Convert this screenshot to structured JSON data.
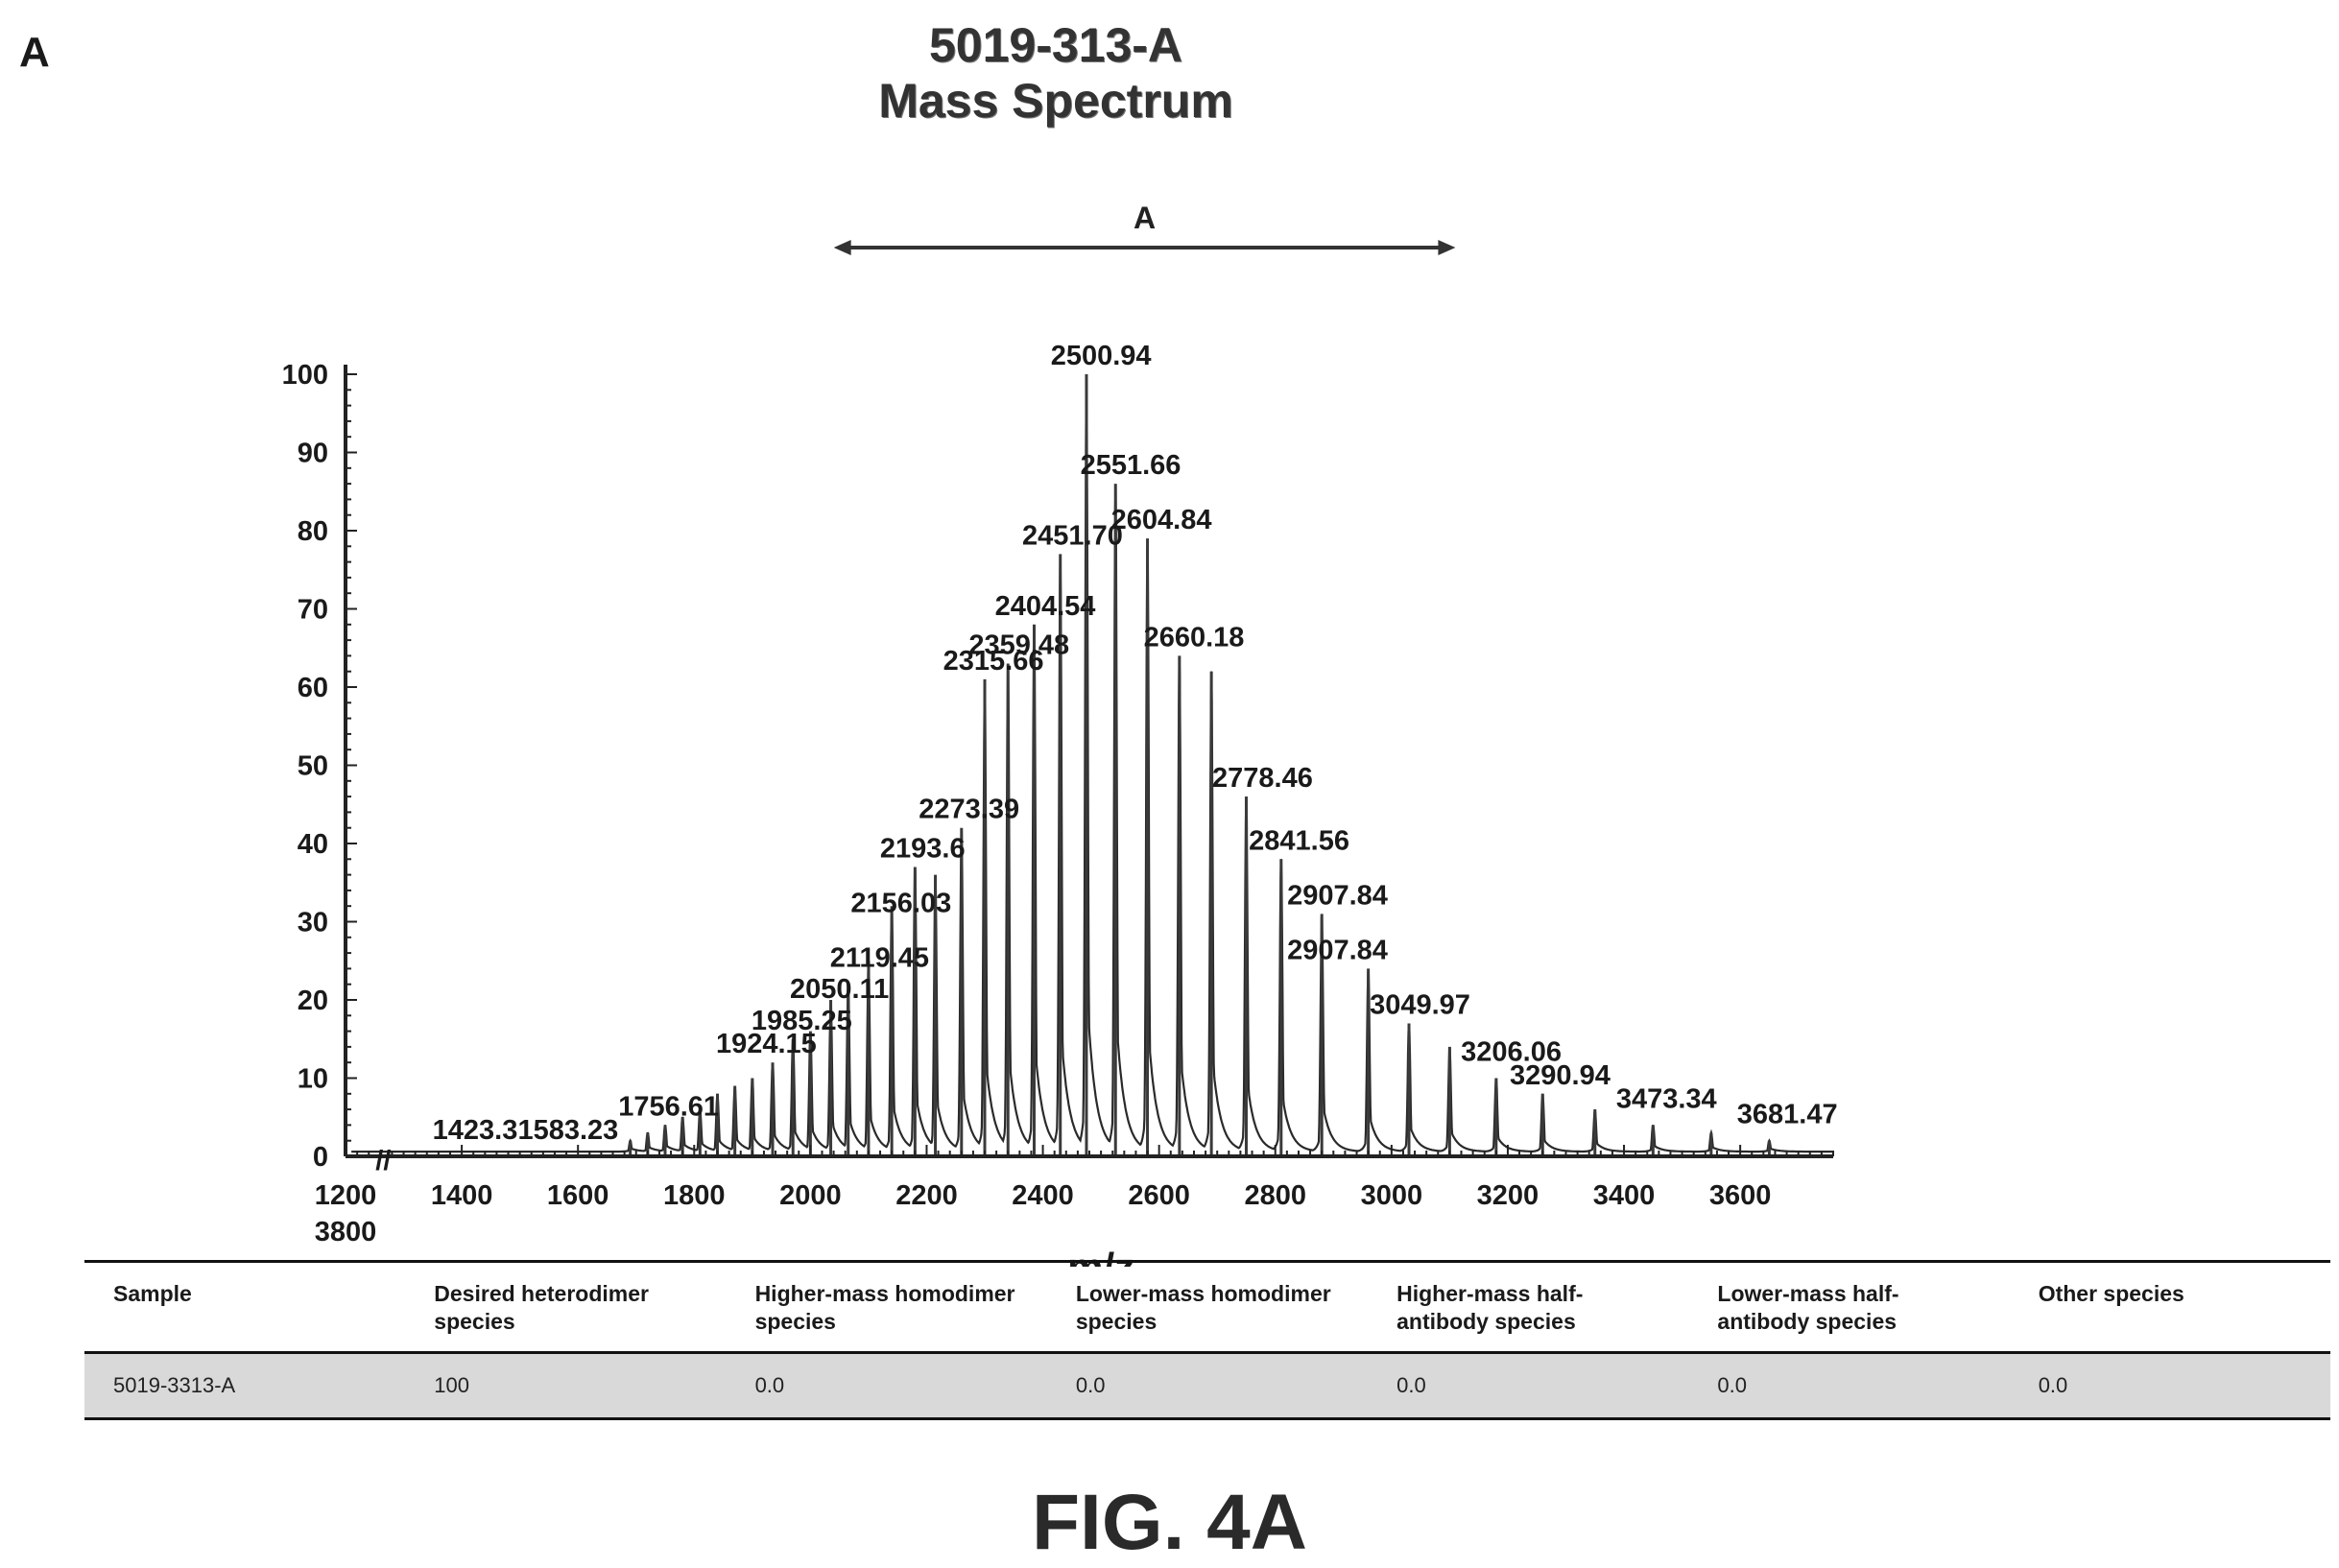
{
  "panel_letter": "A",
  "title_line1": "5019-313-A",
  "title_line2": "Mass Spectrum",
  "range_marker_label": "A",
  "chart_data": {
    "type": "line",
    "title": "5019-313-A Mass Spectrum",
    "xlabel": "m/z",
    "ylabel": "",
    "xlim": [
      1200,
      3760
    ],
    "ylim": [
      0,
      100
    ],
    "x_tick_labels": [
      "1200",
      "1400",
      "1600",
      "1800",
      "2000",
      "2200",
      "2400",
      "2600",
      "2800",
      "3000",
      "3200",
      "3400",
      "3600",
      "3800"
    ],
    "x_tick_values": [
      1200,
      1400,
      1600,
      1800,
      2000,
      2200,
      2400,
      2600,
      2800,
      3000,
      3200,
      3400,
      3600
    ],
    "y_tick_labels": [
      "0",
      "10",
      "20",
      "30",
      "40",
      "50",
      "60",
      "70",
      "80",
      "90",
      "100"
    ],
    "peaks": [
      {
        "x": 1690,
        "y": 2
      },
      {
        "x": 1720,
        "y": 3
      },
      {
        "x": 1750,
        "y": 4
      },
      {
        "x": 1780,
        "y": 5
      },
      {
        "x": 1810,
        "y": 6
      },
      {
        "x": 1840,
        "y": 8
      },
      {
        "x": 1870,
        "y": 9
      },
      {
        "x": 1900,
        "y": 10
      },
      {
        "x": 1935,
        "y": 12
      },
      {
        "x": 1970,
        "y": 15
      },
      {
        "x": 2000,
        "y": 16
      },
      {
        "x": 2035,
        "y": 20
      },
      {
        "x": 2065,
        "y": 22
      },
      {
        "x": 2100,
        "y": 25
      },
      {
        "x": 2140,
        "y": 32
      },
      {
        "x": 2180,
        "y": 37
      },
      {
        "x": 2215,
        "y": 36
      },
      {
        "x": 2260,
        "y": 42
      },
      {
        "x": 2300,
        "y": 61
      },
      {
        "x": 2340,
        "y": 63
      },
      {
        "x": 2385,
        "y": 68
      },
      {
        "x": 2430,
        "y": 77
      },
      {
        "x": 2475,
        "y": 100
      },
      {
        "x": 2525,
        "y": 86
      },
      {
        "x": 2580,
        "y": 79
      },
      {
        "x": 2635,
        "y": 64
      },
      {
        "x": 2690,
        "y": 62
      },
      {
        "x": 2750,
        "y": 46
      },
      {
        "x": 2810,
        "y": 38
      },
      {
        "x": 2880,
        "y": 31
      },
      {
        "x": 2960,
        "y": 24
      },
      {
        "x": 3030,
        "y": 17
      },
      {
        "x": 3100,
        "y": 14
      },
      {
        "x": 3180,
        "y": 10
      },
      {
        "x": 3260,
        "y": 8
      },
      {
        "x": 3350,
        "y": 6
      },
      {
        "x": 3450,
        "y": 4
      },
      {
        "x": 3550,
        "y": 3
      },
      {
        "x": 3650,
        "y": 2
      }
    ],
    "peak_labels": [
      {
        "text": "1423.3",
        "x": 1423,
        "y": 1
      },
      {
        "text": "1583.23",
        "x": 1583,
        "y": 1
      },
      {
        "text": "1756.61",
        "x": 1756,
        "y": 4
      },
      {
        "text": "1924.15",
        "x": 1924,
        "y": 12
      },
      {
        "text": "1985.25",
        "x": 1985,
        "y": 15
      },
      {
        "text": "2050.11",
        "x": 2050,
        "y": 19
      },
      {
        "text": "2119.45",
        "x": 2119,
        "y": 23
      },
      {
        "text": "2156.03",
        "x": 2156,
        "y": 30
      },
      {
        "text": "2193.6",
        "x": 2193,
        "y": 37
      },
      {
        "text": "2273.39",
        "x": 2273,
        "y": 42
      },
      {
        "text": "2315.66",
        "x": 2315,
        "y": 61
      },
      {
        "text": "2359.48",
        "x": 2359,
        "y": 63
      },
      {
        "text": "2404.54",
        "x": 2404,
        "y": 68
      },
      {
        "text": "2451.70",
        "x": 2451,
        "y": 77
      },
      {
        "text": "2500.94",
        "x": 2500,
        "y": 100
      },
      {
        "text": "2551.66",
        "x": 2551,
        "y": 86
      },
      {
        "text": "2604.84",
        "x": 2604,
        "y": 79
      },
      {
        "text": "2660.18",
        "x": 2660,
        "y": 64
      },
      {
        "text": "2778.46",
        "x": 2778,
        "y": 46
      },
      {
        "text": "2841.56",
        "x": 2841,
        "y": 38
      },
      {
        "text": "2907.84",
        "x": 2907,
        "y": 31
      },
      {
        "text": "2907.84",
        "x": 2907,
        "y": 24
      },
      {
        "text": "3049.97",
        "x": 3049,
        "y": 17
      },
      {
        "text": "3206.06",
        "x": 3206,
        "y": 11
      },
      {
        "text": "3290.94",
        "x": 3290,
        "y": 8
      },
      {
        "text": "3473.34",
        "x": 3473,
        "y": 5
      },
      {
        "text": "3681.47",
        "x": 3681,
        "y": 3
      }
    ],
    "range_marker": {
      "x_start": 2050,
      "x_end": 3100,
      "label": "A"
    }
  },
  "table": {
    "headers": [
      "Sample",
      "Desired heterodimer species",
      "Higher-mass homodimer species",
      "Lower-mass homodimer species",
      "Higher-mass half-antibody species",
      "Lower-mass half-antibody species",
      "Other species"
    ],
    "rows": [
      [
        "5019-3313-A",
        "100",
        "0.0",
        "0.0",
        "0.0",
        "0.0",
        "0.0"
      ]
    ]
  },
  "figure_caption": "FIG. 4A"
}
